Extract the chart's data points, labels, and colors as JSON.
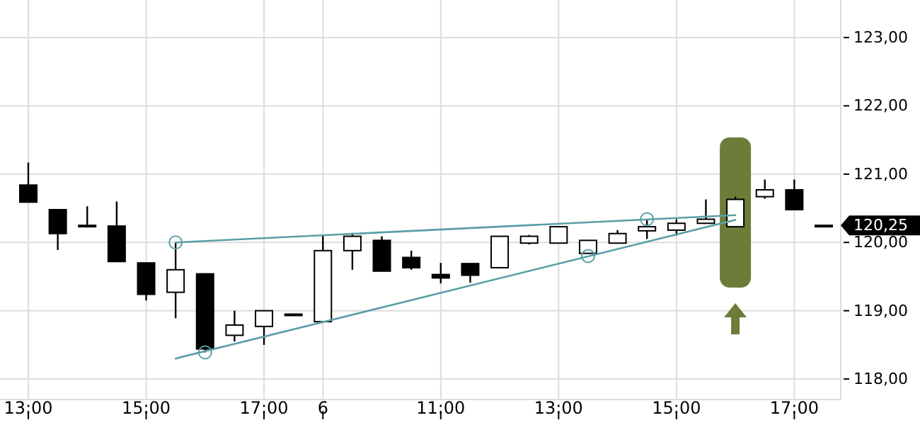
{
  "chart_data": {
    "type": "candlestick",
    "categories": [
      "13:00",
      null,
      null,
      null,
      "15:00",
      null,
      null,
      null,
      "17:00",
      null,
      "6",
      null,
      null,
      null,
      "11:00",
      null,
      null,
      null,
      "13:00",
      null,
      null,
      null,
      "15:00",
      null,
      null,
      null,
      "17:00",
      null
    ],
    "ohlc": [
      [
        120.84,
        121.17,
        120.59,
        120.59
      ],
      [
        120.48,
        120.48,
        119.89,
        120.13
      ],
      [
        120.25,
        120.53,
        120.23,
        120.23
      ],
      [
        120.24,
        120.6,
        119.72,
        119.72
      ],
      [
        119.7,
        119.7,
        119.15,
        119.24
      ],
      [
        119.27,
        120.0,
        118.89,
        119.6
      ],
      [
        119.54,
        119.54,
        118.39,
        118.44
      ],
      [
        118.64,
        119.0,
        118.55,
        118.79
      ],
      [
        118.77,
        119.0,
        118.5,
        119.0
      ],
      [
        118.95,
        118.95,
        118.95,
        118.95
      ],
      [
        118.84,
        120.1,
        118.84,
        119.88
      ],
      [
        119.88,
        120.14,
        119.6,
        120.09
      ],
      [
        120.03,
        120.09,
        119.58,
        119.58
      ],
      [
        119.78,
        119.88,
        119.6,
        119.63
      ],
      [
        119.53,
        119.7,
        119.4,
        119.48
      ],
      [
        119.69,
        119.69,
        119.41,
        119.52
      ],
      [
        119.63,
        120.09,
        119.63,
        120.09
      ],
      [
        119.99,
        120.11,
        119.97,
        120.09
      ],
      [
        119.99,
        120.23,
        119.99,
        120.23
      ],
      [
        119.84,
        120.03,
        119.84,
        120.03
      ],
      [
        119.99,
        120.18,
        119.99,
        120.13
      ],
      [
        120.17,
        120.34,
        120.05,
        120.23
      ],
      [
        120.18,
        120.34,
        120.1,
        120.28
      ],
      [
        120.28,
        120.63,
        120.28,
        120.34
      ],
      [
        120.23,
        120.67,
        120.23,
        120.63
      ],
      [
        120.67,
        120.92,
        120.64,
        120.77
      ],
      [
        120.77,
        120.92,
        120.48,
        120.48
      ],
      [
        120.25,
        120.25,
        120.25,
        120.25
      ]
    ],
    "series": [
      {
        "type": "line",
        "color": "#5a9ea6",
        "values": [
          null,
          null,
          null,
          null,
          null,
          120.0,
          null,
          null,
          null,
          null,
          null,
          null,
          null,
          null,
          null,
          null,
          null,
          null,
          null,
          null,
          null,
          null,
          null,
          null,
          120.4,
          null,
          null,
          null
        ]
      },
      {
        "type": "line",
        "color": "#5a9ea6",
        "values": [
          null,
          null,
          null,
          null,
          null,
          118.3,
          null,
          null,
          null,
          null,
          null,
          null,
          null,
          null,
          null,
          null,
          null,
          null,
          null,
          null,
          null,
          null,
          null,
          null,
          120.33,
          null,
          null,
          null
        ]
      },
      {
        "type": "scatter",
        "color": "#5a9ea6",
        "marker": "circle",
        "values": [
          null,
          null,
          null,
          null,
          null,
          120.0,
          118.39,
          null,
          null,
          null,
          null,
          null,
          null,
          null,
          null,
          null,
          null,
          null,
          null,
          119.8,
          null,
          120.34,
          null,
          null,
          null,
          null,
          null,
          null
        ]
      }
    ],
    "ylim": [
      117.7,
      123.55
    ],
    "yticks": [
      {
        "value": 118,
        "label": "118,00"
      },
      {
        "value": 119,
        "label": "119,00"
      },
      {
        "value": 120,
        "label": "120,00"
      },
      {
        "value": 121,
        "label": "121,00"
      },
      {
        "value": 122,
        "label": "122,00"
      },
      {
        "value": 123,
        "label": "123,00"
      }
    ],
    "annotations": [
      "120,25"
    ],
    "grid": true
  }
}
